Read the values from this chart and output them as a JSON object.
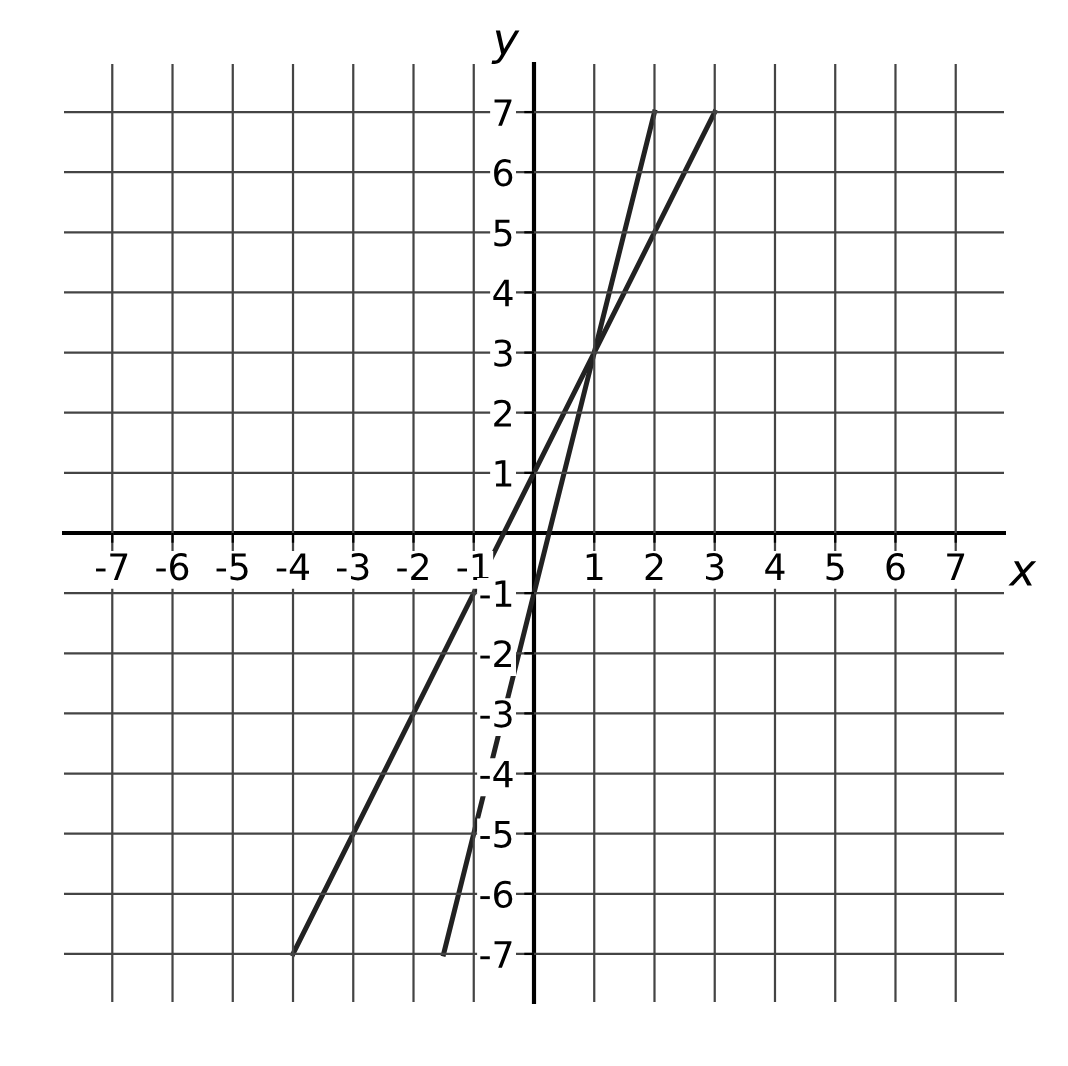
{
  "chart_data": {
    "type": "line",
    "xlabel": "x",
    "ylabel": "y",
    "series": [
      {
        "color": "#222222",
        "x": [
          -4,
          3
        ],
        "values": [
          -7,
          7
        ]
      },
      {
        "color": "#222222",
        "x": [
          -1.5,
          2
        ],
        "values": [
          -7,
          7
        ]
      }
    ],
    "xlim": [
      -7.8,
      7.8
    ],
    "ylim": [
      -7.8,
      7.8
    ],
    "xticks": [
      -7,
      -6,
      -5,
      -4,
      -3,
      -2,
      -1,
      1,
      2,
      3,
      4,
      5,
      6,
      7
    ],
    "yticks": [
      -7,
      -6,
      -5,
      -4,
      -3,
      -2,
      -1,
      1,
      2,
      3,
      4,
      5,
      6,
      7
    ],
    "grid": true,
    "marker": "none",
    "line_style": "solid"
  }
}
